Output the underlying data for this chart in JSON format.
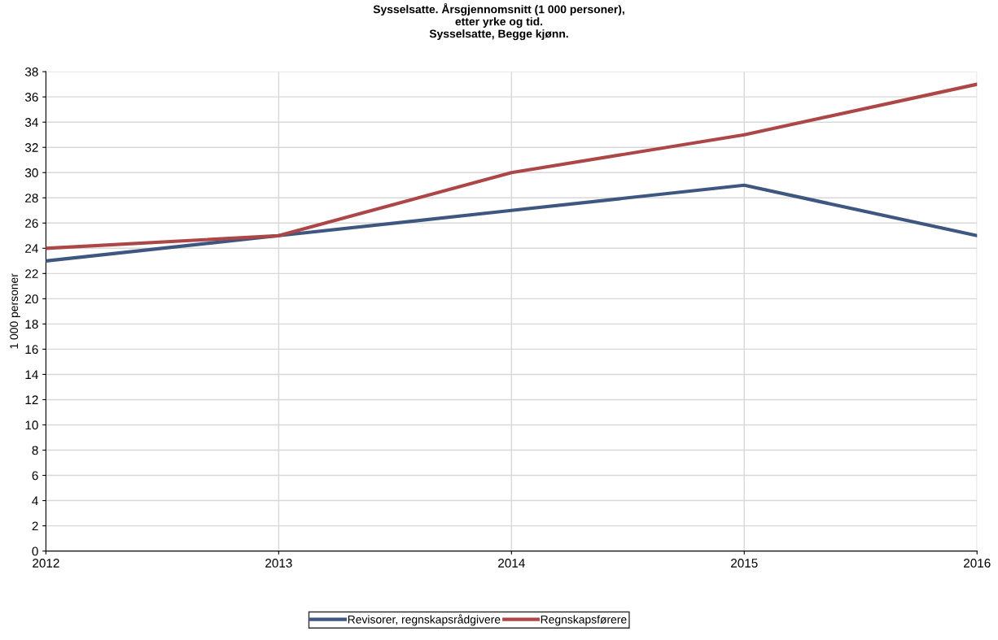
{
  "chart_data": {
    "type": "line",
    "title": "Sysselsatte. Årsgjennomsnitt (1 000 personer),\netter yrke og tid.\nSysselsatte, Begge kjønn.",
    "ylabel": "1 000 personer",
    "categories": [
      "2012",
      "2013",
      "2014",
      "2015",
      "2016"
    ],
    "series": [
      {
        "name": "Revisorer, regnskapsrådgivere",
        "color": "#3e5781",
        "values": [
          23,
          25,
          27,
          29,
          25
        ]
      },
      {
        "name": "Regnskapsførere",
        "color": "#ad4646",
        "values": [
          24,
          25,
          30,
          33,
          37
        ]
      }
    ],
    "ylim": [
      0,
      38
    ],
    "yticks": [
      0,
      2,
      4,
      6,
      8,
      10,
      12,
      14,
      16,
      18,
      20,
      22,
      24,
      26,
      28,
      30,
      32,
      34,
      36,
      38
    ],
    "grid": true,
    "legend": "bottom",
    "marker": "none",
    "line_style": "solid"
  }
}
